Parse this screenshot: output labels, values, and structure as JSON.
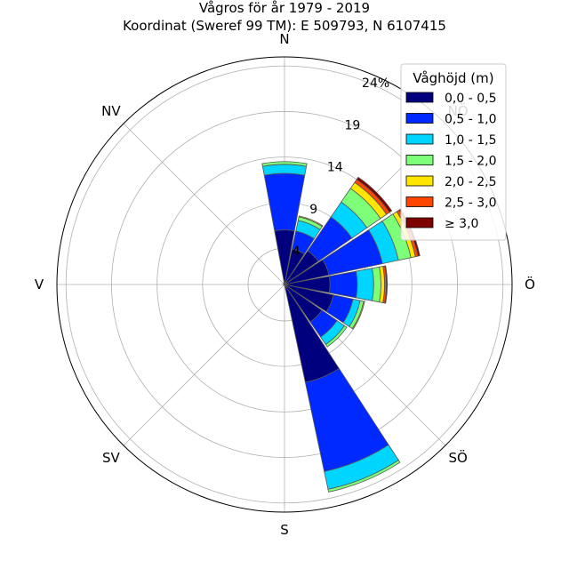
{
  "chart_data": {
    "type": "windrose",
    "title_line1": "Vågros för år 1979 - 2019",
    "title_line2": "Koordinat (Sweref 99 TM): E 509793, N 6107415",
    "direction_labels": [
      "N",
      "NÖ",
      "Ö",
      "SÖ",
      "S",
      "SV",
      "V",
      "NV"
    ],
    "direction_angles": [
      0,
      45,
      90,
      135,
      180,
      225,
      270,
      315
    ],
    "radial_ticks": [
      4,
      9,
      14,
      19,
      24
    ],
    "radial_tick_labels": [
      "4",
      "9",
      "14",
      "19",
      "24%"
    ],
    "rmax": 25,
    "legend": {
      "title": "Våghöjd (m)",
      "placement": "top-right",
      "bins": [
        "0,0 - 0,5",
        "0,5 - 1,0",
        "1,0 - 1,5",
        "1,5 - 2,0",
        "2,0 - 2,5",
        "2,5 - 3,0",
        "≥ 3,0"
      ],
      "colors": [
        "#00007f",
        "#0029ff",
        "#00d5ff",
        "#7dff7a",
        "#ffe600",
        "#ff4600",
        "#7f0000"
      ]
    },
    "sector_width_deg": 21,
    "sectors": [
      {
        "direction_deg": 0,
        "values": [
          6.0,
          6.2,
          1.0,
          0.3,
          0.0,
          0.0,
          0.0
        ]
      },
      {
        "direction_deg": 22.5,
        "values": [
          4.0,
          2.0,
          1.2,
          0.4,
          0.1,
          0.0,
          0.0
        ]
      },
      {
        "direction_deg": 45,
        "values": [
          4.5,
          4.5,
          2.0,
          1.8,
          0.8,
          0.4,
          0.3
        ]
      },
      {
        "direction_deg": 67.5,
        "values": [
          5.0,
          6.0,
          1.8,
          1.4,
          0.5,
          0.3,
          0.2
        ]
      },
      {
        "direction_deg": 90,
        "values": [
          5.0,
          3.0,
          1.8,
          0.8,
          0.4,
          0.2,
          0.1
        ]
      },
      {
        "direction_deg": 112.5,
        "values": [
          5.5,
          2.2,
          0.8,
          0.4,
          0.1,
          0.0,
          0.0
        ]
      },
      {
        "direction_deg": 135,
        "values": [
          5.0,
          2.0,
          1.0,
          0.3,
          0.0,
          0.0,
          0.0
        ]
      },
      {
        "direction_deg": 157.5,
        "values": [
          11.0,
          10.0,
          2.0,
          0.3,
          0.0,
          0.0,
          0.0
        ]
      },
      {
        "direction_deg": 180,
        "values": [
          0.1,
          0,
          0,
          0,
          0,
          0,
          0
        ]
      },
      {
        "direction_deg": 202.5,
        "values": [
          0.1,
          0,
          0,
          0,
          0,
          0,
          0
        ]
      },
      {
        "direction_deg": 225,
        "values": [
          0.1,
          0,
          0,
          0,
          0,
          0,
          0
        ]
      },
      {
        "direction_deg": 247.5,
        "values": [
          0.1,
          0,
          0,
          0,
          0,
          0,
          0
        ]
      },
      {
        "direction_deg": 270,
        "values": [
          0.1,
          0,
          0,
          0,
          0,
          0,
          0
        ]
      },
      {
        "direction_deg": 292.5,
        "values": [
          0.1,
          0,
          0,
          0,
          0,
          0,
          0
        ]
      },
      {
        "direction_deg": 315,
        "values": [
          0.1,
          0,
          0,
          0,
          0,
          0,
          0
        ]
      },
      {
        "direction_deg": 337.5,
        "values": [
          0.2,
          0,
          0,
          0,
          0,
          0,
          0
        ]
      }
    ],
    "grid": true
  }
}
